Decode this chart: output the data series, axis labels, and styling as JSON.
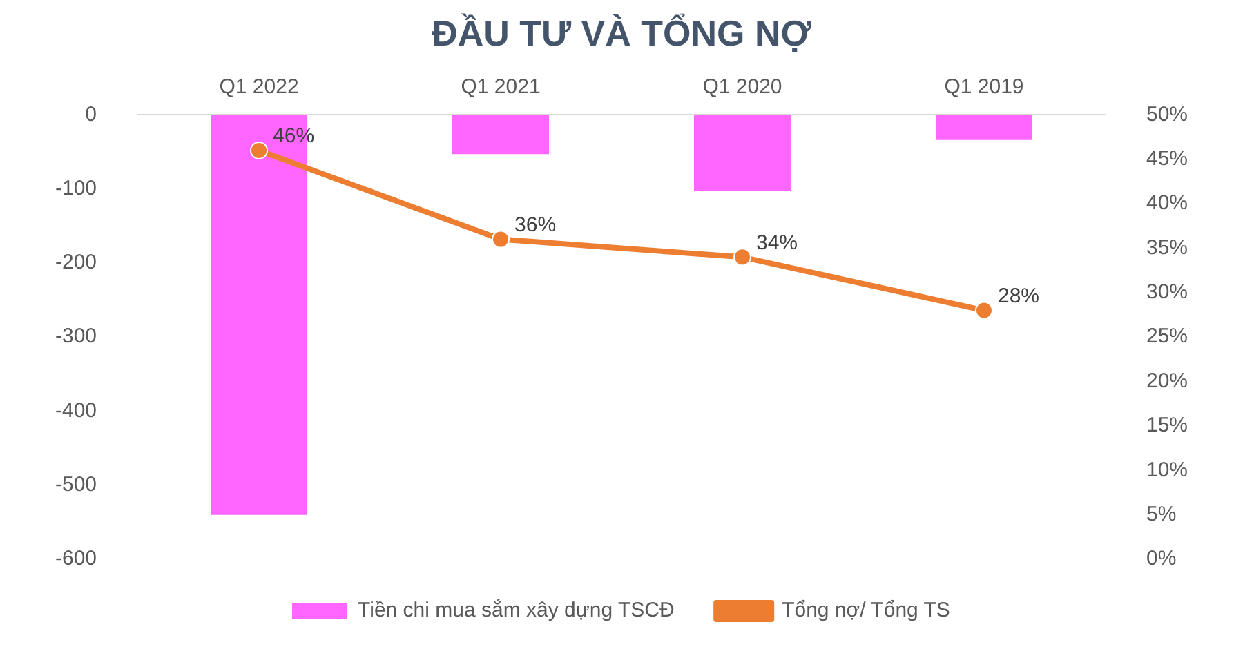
{
  "chart_data": {
    "type": "bar",
    "title": "ĐẦU TƯ VÀ TỔNG NỢ",
    "categories": [
      "Q1 2022",
      "Q1 2021",
      "Q1 2020",
      "Q1 2019"
    ],
    "series": [
      {
        "name": "Tiền chi mua sắm xây dựng TSCĐ",
        "color": "#ff66ff",
        "values": [
          -540,
          -53,
          -103,
          -34
        ]
      },
      {
        "name": "Tổng nợ/ Tổng TS",
        "type": "line",
        "axis": "y2",
        "color": "#ed7d31",
        "values": [
          46,
          36,
          34,
          28
        ],
        "value_labels": [
          "46%",
          "36%",
          "34%",
          "28%"
        ]
      }
    ],
    "ylim": [
      -600,
      0
    ],
    "yticks": [
      -600,
      -500,
      -400,
      -300,
      -200,
      -100,
      0
    ],
    "y2lim": [
      0,
      50
    ],
    "y2ticks": [
      {
        "value": 0,
        "label": "0%"
      },
      {
        "value": 5,
        "label": "5%"
      },
      {
        "value": 10,
        "label": "10%"
      },
      {
        "value": 15,
        "label": "15%"
      },
      {
        "value": 20,
        "label": "20%"
      },
      {
        "value": 25,
        "label": "25%"
      },
      {
        "value": 30,
        "label": "30%"
      },
      {
        "value": 35,
        "label": "35%"
      },
      {
        "value": 40,
        "label": "40%"
      },
      {
        "value": 45,
        "label": "45%"
      },
      {
        "value": 50,
        "label": "50%"
      }
    ],
    "grid": false,
    "legend": "bottom",
    "marker": "circle"
  }
}
